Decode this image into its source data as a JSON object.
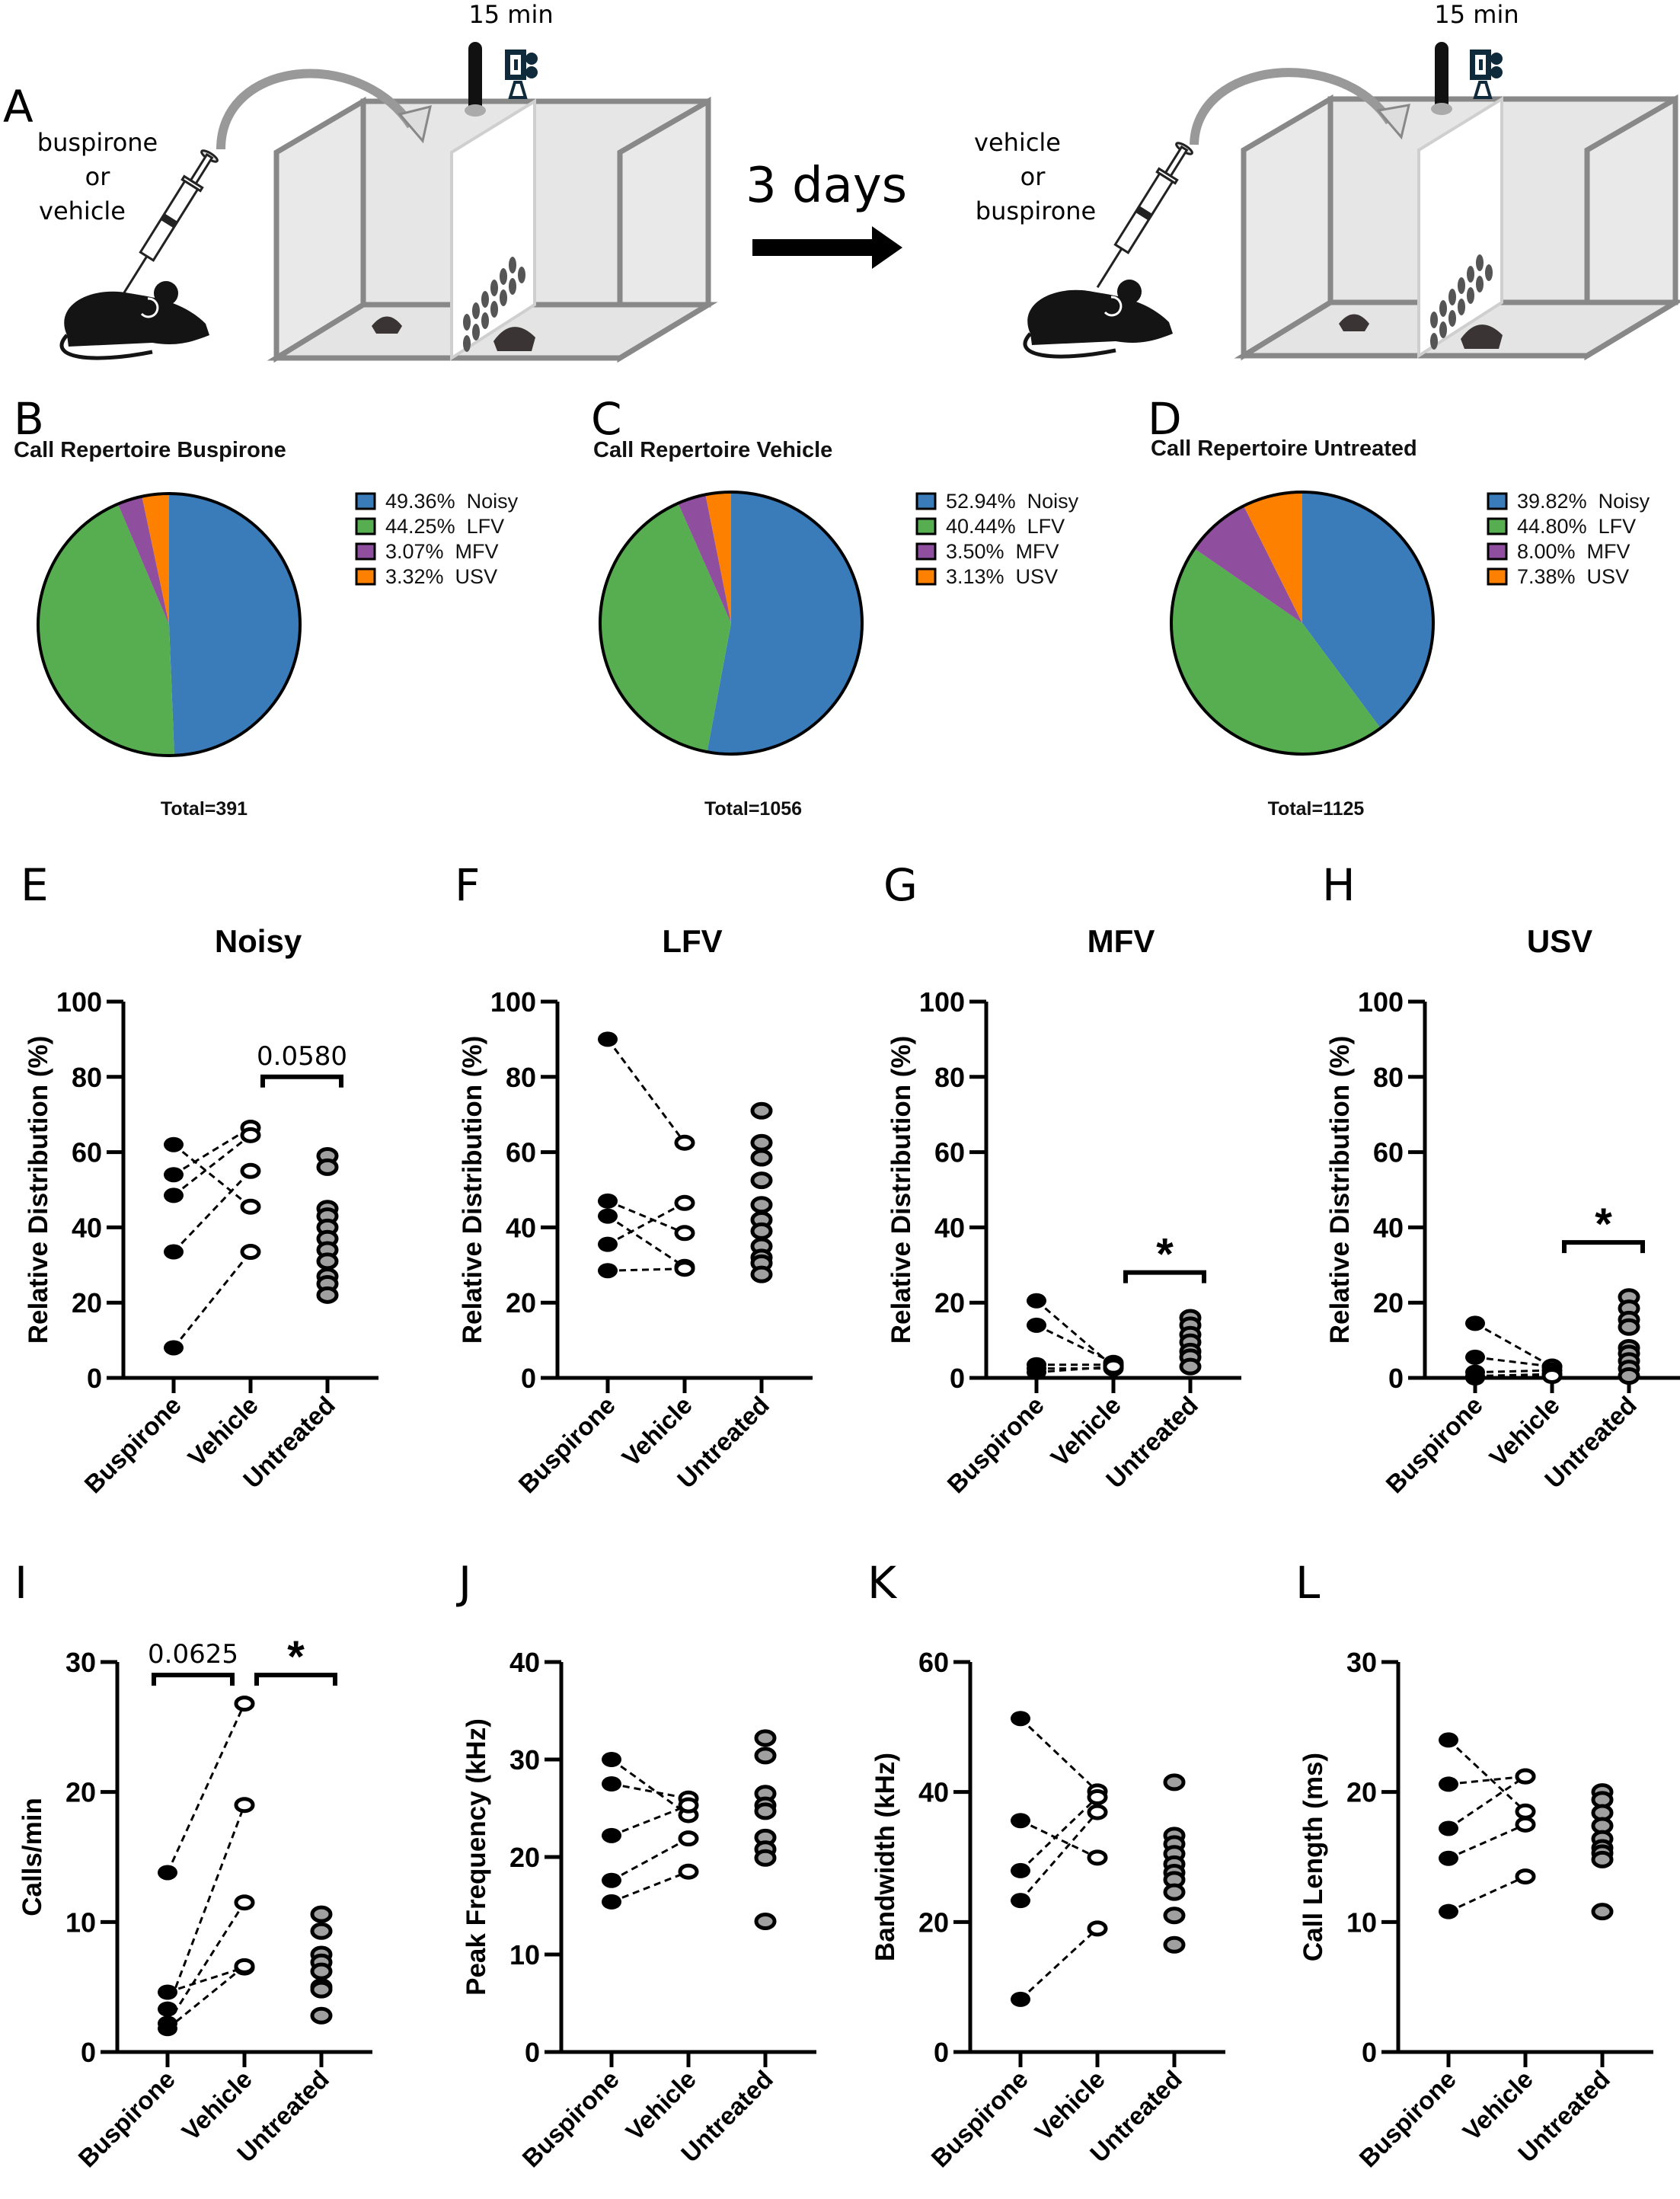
{
  "figure": {
    "panel_a": {
      "letter": "A",
      "session1": {
        "duration": "15 min",
        "treatment_lines": [
          "buspirone",
          "or",
          "vehicle"
        ]
      },
      "interval": "3 days",
      "session2": {
        "duration": "15 min",
        "treatment_lines": [
          "vehicle",
          "or",
          "buspirone"
        ]
      },
      "icons": [
        "mouse-icon",
        "syringe-icon",
        "curved-arrow-icon",
        "test-box-icon",
        "microphone-icon",
        "camera-icon",
        "right-arrow-icon"
      ]
    },
    "colors": {
      "Noisy": "#3A7CB9",
      "LFV": "#57AE50",
      "MFV": "#904E9F",
      "USV": "#FE8000",
      "buspirone_marker": "#000000",
      "vehicle_marker": "#FFFFFF",
      "untreated_marker": "#A0A0A0"
    }
  },
  "chart_data": [
    {
      "panel": "B",
      "type": "pie",
      "title": "Call Repertoire Buspirone",
      "total_label": "Total=391",
      "slices": [
        {
          "name": "Noisy",
          "value": 49.36,
          "label": "49.36%"
        },
        {
          "name": "LFV",
          "value": 44.25,
          "label": "44.25%"
        },
        {
          "name": "MFV",
          "value": 3.07,
          "label": "3.07%"
        },
        {
          "name": "USV",
          "value": 3.32,
          "label": "3.32%"
        }
      ],
      "legend_position": "right"
    },
    {
      "panel": "C",
      "type": "pie",
      "title": "Call Repertoire Vehicle",
      "total_label": "Total=1056",
      "slices": [
        {
          "name": "Noisy",
          "value": 52.94,
          "label": "52.94%"
        },
        {
          "name": "LFV",
          "value": 40.44,
          "label": "40.44%"
        },
        {
          "name": "MFV",
          "value": 3.5,
          "label": "3.50%"
        },
        {
          "name": "USV",
          "value": 3.13,
          "label": "3.13%"
        }
      ],
      "legend_position": "right"
    },
    {
      "panel": "D",
      "type": "pie",
      "title": "Call Repertoire Untreated",
      "total_label": "Total=1125",
      "slices": [
        {
          "name": "Noisy",
          "value": 39.82,
          "label": "39.82%"
        },
        {
          "name": "LFV",
          "value": 44.8,
          "label": "44.80%"
        },
        {
          "name": "MFV",
          "value": 8.0,
          "label": "8.00%"
        },
        {
          "name": "USV",
          "value": 7.38,
          "label": "7.38%"
        }
      ],
      "legend_position": "right"
    },
    {
      "panel": "E",
      "type": "scatter",
      "title": "Noisy",
      "ylabel": "Relative Distribution (%)",
      "categories": [
        "Buspirone",
        "Vehicle",
        "Untreated"
      ],
      "ylim": [
        0,
        100
      ],
      "yticks": [
        0,
        20,
        40,
        60,
        80,
        100
      ],
      "paired": {
        "buspirone": [
          62,
          54,
          48.5,
          33.5,
          8
        ],
        "vehicle": [
          45.5,
          66.5,
          64.5,
          55,
          33.5
        ]
      },
      "untreated": [
        59,
        56,
        45,
        43,
        40,
        37,
        34,
        31,
        27,
        25,
        22
      ],
      "annotations": [
        {
          "from": 1,
          "to": 2,
          "y": 80,
          "text": "0.0580"
        }
      ]
    },
    {
      "panel": "F",
      "type": "scatter",
      "title": "LFV",
      "ylabel": "Relative Distribution (%)",
      "categories": [
        "Buspirone",
        "Vehicle",
        "Untreated"
      ],
      "ylim": [
        0,
        100
      ],
      "yticks": [
        0,
        20,
        40,
        60,
        80,
        100
      ],
      "paired": {
        "buspirone": [
          90,
          47,
          43,
          35.5,
          28.5
        ],
        "vehicle": [
          62.5,
          38.5,
          29.5,
          46.5,
          29
        ]
      },
      "untreated": [
        71,
        62.5,
        58.5,
        52.5,
        46,
        42,
        39,
        35,
        32,
        30.5,
        27.5
      ],
      "annotations": []
    },
    {
      "panel": "G",
      "type": "scatter",
      "title": "MFV",
      "ylabel": "Relative Distribution (%)",
      "categories": [
        "Buspirone",
        "Vehicle",
        "Untreated"
      ],
      "ylim": [
        0,
        100
      ],
      "yticks": [
        0,
        20,
        40,
        60,
        80,
        100
      ],
      "paired": {
        "buspirone": [
          20.5,
          14,
          3.5,
          2.5,
          1.5
        ],
        "vehicle": [
          3,
          4,
          3.5,
          2.5,
          3
        ]
      },
      "untreated": [
        16,
        14,
        11.5,
        9.5,
        7,
        5.5,
        3
      ],
      "annotations": [
        {
          "from": 1,
          "to": 2,
          "y": 28,
          "text": "*"
        }
      ]
    },
    {
      "panel": "H",
      "type": "scatter",
      "title": "USV",
      "ylabel": "Relative Distribution (%)",
      "categories": [
        "Buspirone",
        "Vehicle",
        "Untreated"
      ],
      "ylim": [
        0,
        100
      ],
      "yticks": [
        0,
        20,
        40,
        60,
        80,
        100
      ],
      "paired": {
        "buspirone": [
          14.5,
          5.5,
          1.5,
          0.5,
          0
        ],
        "vehicle": [
          3,
          3,
          2,
          1,
          0.5
        ]
      },
      "untreated": [
        21.5,
        18.5,
        15.5,
        13.5,
        8,
        6.5,
        4.5,
        2.5,
        0.5
      ],
      "annotations": [
        {
          "from": 1,
          "to": 2,
          "y": 36,
          "text": "*"
        }
      ]
    },
    {
      "panel": "I",
      "type": "scatter",
      "title": "",
      "ylabel": "Calls/min",
      "categories": [
        "Buspirone",
        "Vehicle",
        "Untreated"
      ],
      "ylim": [
        0,
        30
      ],
      "yticks": [
        0,
        10,
        20,
        30
      ],
      "paired": {
        "buspirone": [
          13.8,
          4.6,
          3.3,
          2.2,
          1.8
        ],
        "vehicle": [
          26.8,
          6.5,
          19,
          11.5,
          6.6
        ]
      },
      "untreated": [
        10.6,
        9.3,
        7.5,
        6.9,
        6.2,
        5.0,
        4.8,
        2.8
      ],
      "annotations": [
        {
          "from": 0,
          "to": 1,
          "y": 29,
          "text": "0.0625"
        },
        {
          "from": 1,
          "to": 2,
          "y": 29,
          "text": "*"
        }
      ]
    },
    {
      "panel": "J",
      "type": "scatter",
      "title": "",
      "ylabel": "Peak Frequency (kHz)",
      "categories": [
        "Buspirone",
        "Vehicle",
        "Untreated"
      ],
      "ylim": [
        0,
        40
      ],
      "yticks": [
        0,
        10,
        20,
        30,
        40
      ],
      "paired": {
        "buspirone": [
          30,
          27.5,
          22.2,
          17.6,
          15.4
        ],
        "vehicle": [
          24.3,
          26,
          25.3,
          21.9,
          18.5
        ]
      },
      "untreated": [
        32.2,
        30.4,
        26.5,
        25.3,
        24.7,
        22,
        20.8,
        19.9,
        13.4
      ],
      "annotations": []
    },
    {
      "panel": "K",
      "type": "scatter",
      "title": "",
      "ylabel": "Bandwidth (kHz)",
      "categories": [
        "Buspirone",
        "Vehicle",
        "Untreated"
      ],
      "ylim": [
        0,
        60
      ],
      "yticks": [
        0,
        20,
        40,
        60
      ],
      "paired": {
        "buspirone": [
          51.3,
          35.6,
          27.9,
          23.3,
          8.1
        ],
        "vehicle": [
          40.1,
          29.9,
          39.2,
          36.9,
          19
        ]
      },
      "untreated": [
        41.5,
        33.3,
        32,
        30.5,
        28.9,
        27.6,
        26.5,
        24.6,
        21,
        16.5
      ],
      "annotations": []
    },
    {
      "panel": "L",
      "type": "scatter",
      "title": "",
      "ylabel": "Call Length (ms)",
      "categories": [
        "Buspirone",
        "Vehicle",
        "Untreated"
      ],
      "ylim": [
        0,
        30
      ],
      "yticks": [
        0,
        10,
        20,
        30
      ],
      "paired": {
        "buspirone": [
          24,
          20.6,
          17.2,
          14.9,
          10.8
        ],
        "vehicle": [
          18.5,
          21.2,
          21.2,
          17.5,
          13.5
        ]
      },
      "untreated": [
        20,
        19.4,
        18.4,
        17.4,
        16.4,
        15.7,
        15.3,
        14.8,
        10.8
      ],
      "annotations": []
    }
  ]
}
